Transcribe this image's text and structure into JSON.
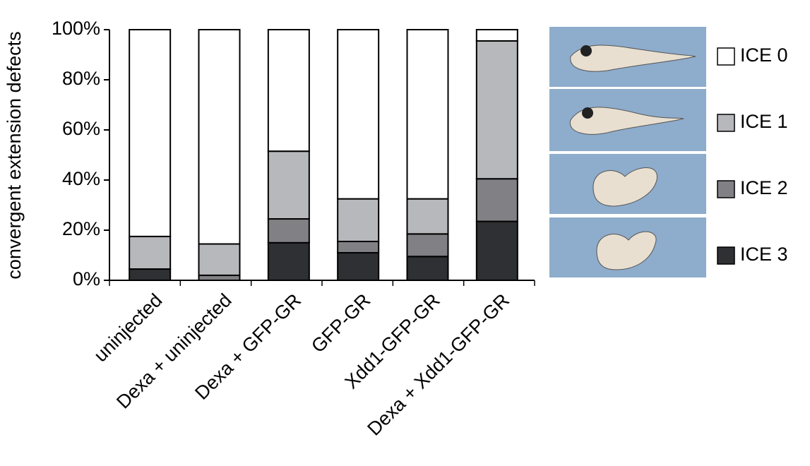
{
  "chart_data": {
    "type": "stacked_bar",
    "y_label": "convergent extension defects",
    "categories": [
      "uninjected",
      "Dexa + uninjected",
      "Dexa + GFP-GR",
      "GFP-GR",
      "Xdd1-GFP-GR",
      "Dexa + Xdd1-GFP-GR"
    ],
    "series": [
      {
        "name": "ICE 0",
        "color": "#ffffff",
        "values": [
          82.5,
          85.5,
          48.5,
          67.5,
          67.5,
          4.5
        ]
      },
      {
        "name": "ICE 1",
        "color": "#b7b8bc",
        "values": [
          13,
          12.5,
          27,
          17,
          14,
          55
        ]
      },
      {
        "name": "ICE 2",
        "color": "#808085",
        "values": [
          0,
          2,
          9.5,
          4.5,
          9,
          17
        ]
      },
      {
        "name": "ICE 3",
        "color": "#2e3033",
        "values": [
          4.5,
          0,
          15,
          11,
          9.5,
          23.5
        ]
      }
    ],
    "ylim": [
      0,
      100
    ],
    "yticks": [
      {
        "value": 0,
        "label": "0%"
      },
      {
        "value": 20,
        "label": "20%"
      },
      {
        "value": 40,
        "label": "40%"
      },
      {
        "value": 60,
        "label": "60%"
      },
      {
        "value": 80,
        "label": "80%"
      },
      {
        "value": 100,
        "label": "100%"
      }
    ],
    "legend": "right"
  }
}
